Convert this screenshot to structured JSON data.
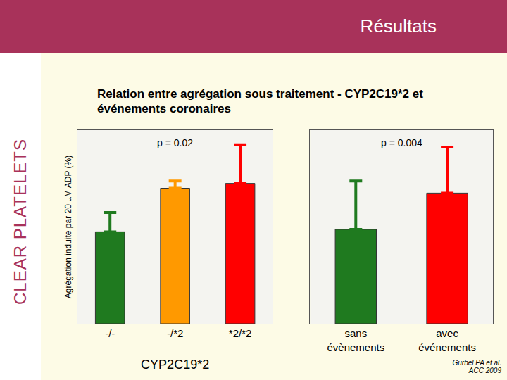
{
  "slide": {
    "header": "Résultats",
    "side_label": "CLEAR PLATELETS",
    "title": "Relation entre agrégation sous traitement - CYP2C19*2 et événements coronaires",
    "citation": [
      "Gurbel PA et al.",
      "ACC 2009"
    ]
  },
  "chart_data": [
    {
      "type": "bar",
      "y_label": "Agrégation induite par 20 µM ADP (%)",
      "x_label": "CYP2C19*2",
      "categories": [
        "-/-",
        "-/*2",
        "*2/*2"
      ],
      "values": [
        38,
        56,
        58
      ],
      "errors": [
        8,
        3,
        16
      ],
      "colors": [
        "#1f7a1f",
        "#ff9900",
        "#ff0000"
      ],
      "annotations": [
        "p = 0.02"
      ],
      "ylim": [
        0,
        80
      ],
      "tick_labels": "x",
      "grid": false
    },
    {
      "type": "bar",
      "categories": [
        "sans évènements",
        "avec événements"
      ],
      "values": [
        39,
        54
      ],
      "errors": [
        20,
        19
      ],
      "colors": [
        "#1f7a1f",
        "#ff0000"
      ],
      "annotations": [
        "p = 0.004"
      ],
      "ylim": [
        0,
        80
      ],
      "tick_labels": "x",
      "grid": false
    }
  ]
}
